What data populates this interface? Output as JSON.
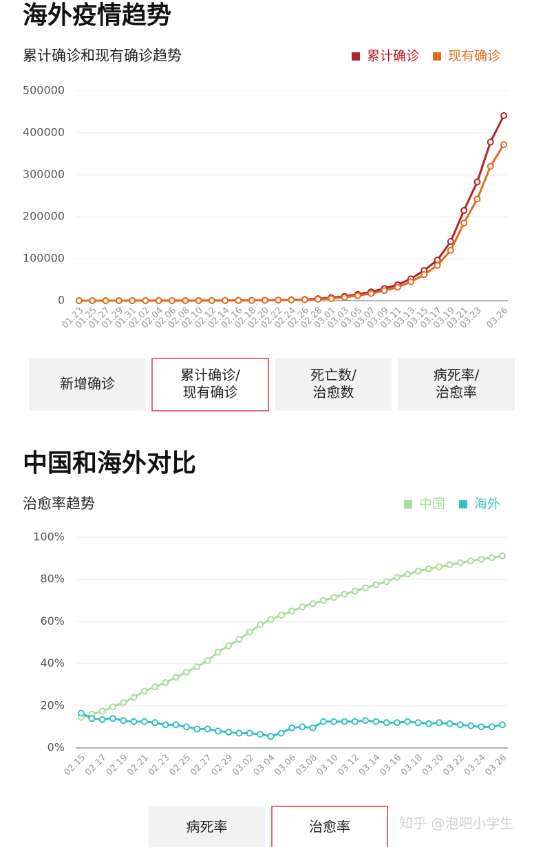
{
  "headings": [
    "海外疫情趋势",
    "中国和海外对比"
  ],
  "tabs": [
    {
      "items": [
        [
          "新增确诊"
        ],
        [
          "累计确诊/",
          "现有确诊"
        ],
        [
          "死亡数/",
          "治愈数"
        ],
        [
          "病死率/",
          "治愈率"
        ]
      ],
      "selected": 1
    },
    {
      "items": [
        [
          "病死率"
        ],
        [
          "治愈率"
        ]
      ],
      "selected": 1
    }
  ],
  "watermark": "知乎 @泡吧小学生",
  "chart_data": [
    {
      "type": "line",
      "title": "累计确诊和现有确诊趋势",
      "legend": "top-right",
      "grid": true,
      "categories": [
        "01.23",
        "01.25",
        "01.27",
        "01.29",
        "01.31",
        "02.02",
        "02.04",
        "02.06",
        "02.08",
        "02.10",
        "02.12",
        "02.14",
        "02.16",
        "02.18",
        "02.20",
        "02.22",
        "02.24",
        "02.26",
        "02.28",
        "03.01",
        "03.03",
        "03.05",
        "03.07",
        "03.09",
        "03.11",
        "03.13",
        "03.15",
        "03.17",
        "03.19",
        "03.21",
        "03.23",
        null,
        "03.26"
      ],
      "series": [
        {
          "name": "累计确诊",
          "color": "#b3202a",
          "values": [
            20,
            40,
            60,
            90,
            130,
            150,
            200,
            240,
            290,
            330,
            400,
            510,
            680,
            900,
            1100,
            1500,
            2100,
            2900,
            4700,
            7100,
            10500,
            15000,
            21000,
            29000,
            38000,
            52000,
            72000,
            97000,
            141000,
            215000,
            283000,
            378000,
            441000
          ]
        },
        {
          "name": "现有确诊",
          "color": "#e36c1f",
          "values": [
            20,
            38,
            55,
            85,
            120,
            130,
            170,
            200,
            240,
            270,
            320,
            380,
            500,
            700,
            850,
            1200,
            1700,
            2200,
            3500,
            5000,
            8000,
            12000,
            17000,
            24000,
            32000,
            45000,
            62000,
            84000,
            120000,
            185000,
            242000,
            320000,
            372000
          ]
        }
      ],
      "ylim": [
        0,
        500000
      ],
      "yticks": [
        0,
        100000,
        200000,
        300000,
        400000,
        500000
      ]
    },
    {
      "type": "line",
      "title": "治愈率趋势",
      "legend": "top-right",
      "grid": true,
      "categories": [
        "02.15",
        null,
        "02.17",
        null,
        "02.19",
        null,
        "02.21",
        null,
        "02.23",
        null,
        "02.25",
        null,
        "02.27",
        null,
        "02.29",
        null,
        "03.02",
        null,
        "03.04",
        null,
        "03.06",
        null,
        "03.08",
        null,
        "03.10",
        null,
        "03.12",
        null,
        "03.14",
        null,
        "03.16",
        null,
        "03.18",
        null,
        "03.20",
        null,
        "03.22",
        null,
        "03.24",
        null,
        "03.26"
      ],
      "series": [
        {
          "name": "中国",
          "color": "#a8dc9a",
          "values": [
            14.5,
            16,
            17.5,
            19.5,
            21.5,
            24,
            27,
            29,
            31,
            33.5,
            36,
            38.5,
            41.5,
            45.5,
            48.5,
            51.5,
            55,
            58.5,
            61,
            63,
            65,
            67,
            68.5,
            70,
            71.5,
            73,
            74.5,
            76,
            77.5,
            79,
            81,
            82.5,
            84,
            85,
            86,
            87,
            88,
            88.8,
            89.6,
            90.4,
            91.2
          ]
        },
        {
          "name": "海外",
          "color": "#36c0c2",
          "values": [
            16.5,
            14,
            13.5,
            14,
            13,
            12.5,
            12.5,
            12,
            11,
            11,
            10,
            9,
            9,
            8,
            7.5,
            7,
            7,
            6.5,
            5.5,
            7,
            9.5,
            10,
            9.5,
            12.5,
            12.5,
            12.5,
            12.5,
            13,
            12.5,
            12,
            12,
            12.5,
            12,
            11.5,
            12,
            11.5,
            11,
            10.5,
            10,
            10,
            11
          ]
        }
      ],
      "ylim": [
        0,
        100
      ],
      "yticks": [
        {
          "value": 0,
          "label": "0%"
        },
        {
          "value": 20,
          "label": "20%"
        },
        {
          "value": 40,
          "label": "40%"
        },
        {
          "value": 60,
          "label": "60%"
        },
        {
          "value": 80,
          "label": "80%"
        },
        {
          "value": 100,
          "label": "100%"
        }
      ]
    }
  ]
}
